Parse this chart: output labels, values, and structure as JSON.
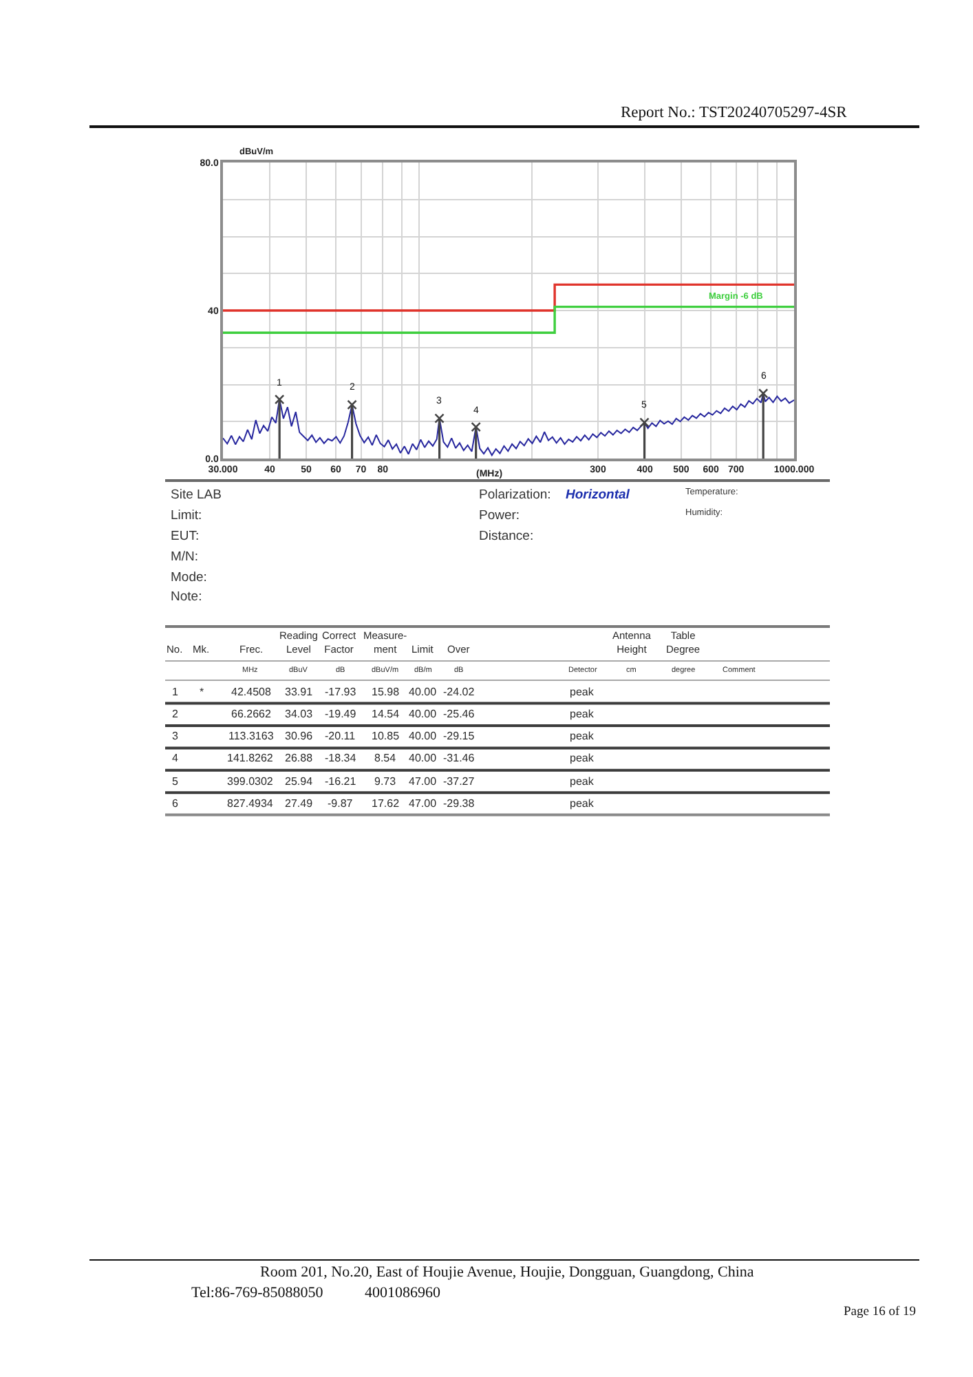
{
  "chart_data": [
    {
      "type": "line",
      "xlabel": "(MHz)",
      "ylabel": "dBuV/m",
      "log": "x",
      "xlim": [
        30,
        1000
      ],
      "xticks": [
        {
          "value": 30,
          "label": "30.000"
        },
        40,
        50,
        60,
        70,
        80,
        {
          "value": 90,
          "label": null
        },
        {
          "value": 100,
          "label": null
        },
        {
          "value": 200,
          "label": null
        },
        300,
        400,
        500,
        600,
        700,
        {
          "value": 800,
          "label": null
        },
        {
          "value": 900,
          "label": null
        },
        {
          "value": 1000,
          "label": "1000.000"
        }
      ],
      "ylim": [
        0,
        80
      ],
      "yticks": [
        {
          "value": 0,
          "label": "0.0"
        },
        {
          "value": 10,
          "label": null
        },
        {
          "value": 20,
          "label": null
        },
        {
          "value": 30,
          "label": null
        },
        40,
        {
          "value": 50,
          "label": null
        },
        {
          "value": 60,
          "label": null
        },
        {
          "value": 70,
          "label": null
        },
        {
          "value": 80,
          "label": "80.0"
        }
      ],
      "grid": true,
      "legend": false,
      "marker": "none",
      "series": [
        {
          "color": "#26269e",
          "x": [
            30,
            30.8,
            31.6,
            32.4,
            33.2,
            34,
            34.9,
            35.8,
            36.7,
            37.6,
            38.5,
            39.5,
            40.5,
            41.5,
            42.4508,
            43.5,
            44.6,
            45.7,
            46.9,
            48,
            49.2,
            50.5,
            51.8,
            53.1,
            54.4,
            55.8,
            57.2,
            58.6,
            60.1,
            61.6,
            63.1,
            64.7,
            66.2662,
            67.9,
            69.6,
            71.4,
            73.2,
            75,
            76.9,
            78.8,
            80.8,
            82.8,
            84.9,
            87,
            89.2,
            91.4,
            93.7,
            96.1,
            98.5,
            101,
            103.5,
            106.1,
            108.8,
            111.5,
            113.3163,
            116.2,
            119.1,
            122.1,
            125.2,
            128.3,
            131.5,
            134.8,
            138.2,
            141.8262,
            145.2,
            148.8,
            152.6,
            156.4,
            160.3,
            164.3,
            168.5,
            172.7,
            177,
            181.5,
            186,
            190.7,
            195.5,
            200.4,
            205.4,
            210.6,
            215.9,
            221.3,
            226.8,
            232.5,
            238.4,
            244.4,
            250.5,
            256.8,
            263.2,
            269.8,
            276.6,
            283.5,
            290.6,
            297.9,
            305.4,
            313,
            320.9,
            329,
            337.2,
            345.7,
            354.4,
            363.3,
            372.4,
            381.7,
            391.3,
            399.0302,
            407.7,
            417.9,
            428.4,
            439.2,
            450.2,
            461.5,
            473.1,
            484.9,
            497.1,
            509.6,
            522.4,
            535.5,
            548.9,
            562.7,
            576.8,
            591.3,
            606.1,
            621.3,
            636.9,
            652.9,
            669.3,
            686.1,
            703.3,
            721,
            739.1,
            757.6,
            776.6,
            796.1,
            816.1,
            827.4934,
            838,
            857.6,
            879.1,
            901.2,
            923.8,
            947,
            970.8,
            1000
          ],
          "values": [
            5.5,
            4.0,
            6.2,
            3.8,
            5.9,
            4.6,
            7.8,
            5.2,
            10.4,
            6.8,
            8.9,
            7.4,
            11.2,
            9.6,
            16.0,
            10.8,
            13.9,
            8.7,
            12.6,
            7.1,
            6.0,
            4.9,
            6.3,
            4.4,
            5.6,
            4.1,
            5.3,
            4.8,
            5.9,
            4.2,
            6.1,
            9.8,
            14.5,
            9.4,
            6.2,
            4.3,
            5.8,
            3.6,
            6.4,
            4.1,
            3.2,
            5.0,
            2.6,
            3.9,
            1.5,
            3.3,
            1.2,
            4.0,
            2.4,
            5.1,
            3.0,
            4.7,
            3.4,
            5.2,
            10.9,
            4.5,
            3.1,
            5.5,
            2.8,
            4.2,
            2.2,
            3.6,
            1.9,
            8.5,
            2.7,
            1.3,
            2.9,
            0.9,
            2.6,
            1.4,
            3.4,
            2.0,
            3.9,
            2.7,
            4.6,
            3.5,
            5.3,
            4.1,
            6.0,
            4.4,
            7.2,
            4.9,
            5.8,
            4.2,
            5.6,
            3.9,
            5.2,
            4.5,
            5.9,
            4.8,
            6.3,
            5.1,
            6.6,
            5.7,
            7.0,
            6.1,
            7.4,
            6.4,
            7.6,
            6.8,
            7.9,
            7.1,
            8.4,
            7.6,
            8.8,
            9.7,
            8.2,
            9.6,
            8.7,
            10.3,
            9.4,
            10.1,
            9.3,
            10.8,
            10.0,
            11.2,
            10.4,
            11.6,
            10.9,
            12.1,
            11.3,
            12.4,
            11.8,
            12.9,
            12.2,
            13.6,
            12.8,
            14.1,
            13.2,
            14.7,
            13.9,
            15.6,
            14.8,
            16.2,
            15.1,
            17.6,
            15.4,
            16.5,
            15.2,
            16.8,
            15.5,
            16.3,
            15.0,
            15.8
          ]
        },
        {
          "type": "step",
          "color": "#e0342c",
          "x": [
            30,
            230,
            1000
          ],
          "values": [
            40,
            47,
            47
          ]
        },
        {
          "type": "step",
          "name": "Margin -6 dB",
          "color": "#3fcf3f",
          "x": [
            30,
            230,
            1000
          ],
          "values": [
            34,
            41,
            41
          ]
        },
        {
          "type": "lollipop",
          "marker": "cross",
          "color": "#444444",
          "x": [
            42.4508,
            66.2662,
            113.3163,
            141.8262,
            399.0302,
            827.4934
          ],
          "values": [
            15.98,
            14.54,
            10.85,
            8.54,
            9.73,
            17.62
          ]
        }
      ],
      "annotations": [
        {
          "text": "1",
          "x": 42.4508,
          "y": 15.98
        },
        {
          "text": "2",
          "x": 66.2662,
          "y": 14.54
        },
        {
          "text": "3",
          "x": 113.3163,
          "y": 10.85
        },
        {
          "text": "4",
          "x": 141.8262,
          "y": 8.54
        },
        {
          "text": "5",
          "x": 399.0302,
          "y": 9.73
        },
        {
          "text": "6",
          "x": 827.4934,
          "y": 17.62
        },
        "Report No.: TST20240705297-4SR",
        "Room 201, No.20, East of Houjie Avenue, Houjie, Dongguan, Guangdong, China",
        "Tel:86-769-85088050",
        "4001086960",
        "Page 16 of 19"
      ]
    },
    {
      "type": "other",
      "cell_labels": [
        [
          "Site LAB",
          "Polarization:",
          "Horizontal",
          "Temperature:"
        ],
        [
          "Limit:",
          "Power:",
          null,
          "Humidity:"
        ],
        [
          "EUT:",
          "Distance:",
          null,
          null
        ],
        [
          "M/N:",
          null,
          null,
          null
        ],
        [
          "Mode:",
          null,
          null,
          null
        ],
        [
          "Note:",
          null,
          null,
          null
        ]
      ]
    },
    {
      "type": "heatmap",
      "ylabel": "No.",
      "categories": [
        "Mk.",
        "Frec.",
        "Reading\nLevel",
        "Correct\nFactor",
        "Measure-\nment",
        "Limit",
        "Over",
        null,
        "Antenna\nHeight",
        "Table\nDegree",
        null
      ],
      "y_categories": [
        "1",
        "2",
        "3",
        "4",
        "5",
        "6"
      ],
      "cells": [
        [
          null,
          null,
          null,
          null,
          null,
          null,
          null,
          null,
          null,
          null,
          null
        ],
        [
          null,
          null,
          null,
          null,
          null,
          null,
          null,
          null,
          null,
          null,
          null
        ],
        [
          null,
          null,
          null,
          null,
          null,
          null,
          null,
          null,
          null,
          null,
          null
        ],
        [
          null,
          null,
          null,
          null,
          null,
          null,
          null,
          null,
          null,
          null,
          null
        ],
        [
          null,
          null,
          null,
          null,
          null,
          null,
          null,
          null,
          null,
          null,
          null
        ],
        [
          null,
          null,
          null,
          null,
          null,
          null,
          null,
          null,
          null,
          null,
          null
        ]
      ],
      "cell_labels": [
        [
          "*",
          "42.4508",
          "33.91",
          "-17.93",
          "15.98",
          "40.00",
          "-24.02",
          "peak",
          null,
          null,
          null
        ],
        [
          null,
          "66.2662",
          "34.03",
          "-19.49",
          "14.54",
          "40.00",
          "-25.46",
          "peak",
          null,
          null,
          null
        ],
        [
          null,
          "113.3163",
          "30.96",
          "-20.11",
          "10.85",
          "40.00",
          "-29.15",
          "peak",
          null,
          null,
          null
        ],
        [
          null,
          "141.8262",
          "26.88",
          "-18.34",
          "8.54",
          "40.00",
          "-31.46",
          "peak",
          null,
          null,
          null
        ],
        [
          null,
          "399.0302",
          "25.94",
          "-16.21",
          "9.73",
          "47.00",
          "-37.27",
          "peak",
          null,
          null,
          null
        ],
        [
          null,
          "827.4934",
          "27.49",
          "-9.87",
          "17.62",
          "47.00",
          "-29.38",
          "peak",
          null,
          null,
          null
        ]
      ],
      "annotations": [
        "MHz",
        "dBuV",
        "dB",
        "dBuV/m",
        "dB/m",
        "dB",
        "Detector",
        "cm",
        "degree",
        "Comment"
      ]
    }
  ]
}
